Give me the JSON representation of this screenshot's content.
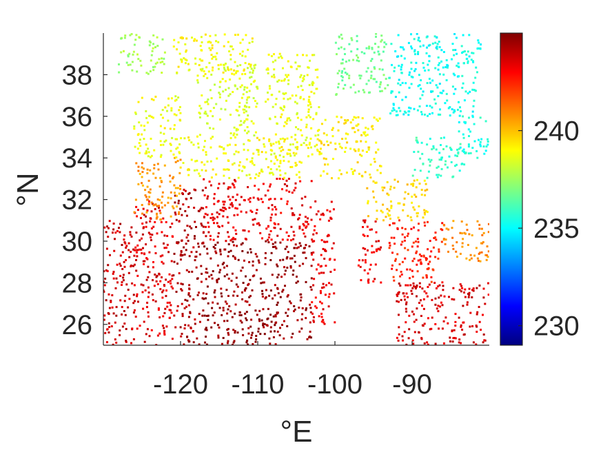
{
  "chart_data": {
    "type": "scatter",
    "title": "",
    "xlabel": "°E",
    "ylabel": "°N",
    "xlim": [
      -130,
      -80
    ],
    "ylim": [
      25,
      40
    ],
    "x_ticks": [
      -120,
      -110,
      -100,
      -90
    ],
    "x_tick_labels": [
      "-120",
      "-110",
      "-100",
      "-90"
    ],
    "y_ticks": [
      26,
      28,
      30,
      32,
      34,
      36,
      38
    ],
    "y_tick_labels": [
      "26",
      "28",
      "30",
      "32",
      "34",
      "36",
      "38"
    ],
    "grid": false,
    "colormap": "jet",
    "colorbar": {
      "range": [
        229,
        245
      ],
      "ticks": [
        230,
        235,
        240
      ],
      "tick_labels": [
        "230",
        "235",
        "240"
      ]
    },
    "regions": [
      {
        "lon": [
          -130,
          -126
        ],
        "lat": [
          25,
          31
        ],
        "value": 243.8
      },
      {
        "lon": [
          -126,
          -121
        ],
        "lat": [
          25,
          32
        ],
        "value": 243.5
      },
      {
        "lon": [
          -121,
          -117
        ],
        "lat": [
          25,
          32.5
        ],
        "value": 244.2
      },
      {
        "lon": [
          -117,
          -103
        ],
        "lat": [
          25,
          30
        ],
        "value": 244.6
      },
      {
        "lon": [
          -117,
          -103
        ],
        "lat": [
          30,
          33
        ],
        "value": 243.3
      },
      {
        "lon": [
          -103,
          -100
        ],
        "lat": [
          26,
          32
        ],
        "value": 243.3
      },
      {
        "lon": [
          -97,
          -94
        ],
        "lat": [
          28,
          31
        ],
        "value": 243.2
      },
      {
        "lon": [
          -92,
          -80
        ],
        "lat": [
          25,
          28
        ],
        "value": 243.6
      },
      {
        "lon": [
          -93,
          -86
        ],
        "lat": [
          28,
          31
        ],
        "value": 242.5
      },
      {
        "lon": [
          -86,
          -80
        ],
        "lat": [
          29,
          31
        ],
        "value": 240.8
      },
      {
        "lon": [
          -96,
          -88
        ],
        "lat": [
          31,
          33
        ],
        "value": 239.6
      },
      {
        "lon": [
          -90,
          -83
        ],
        "lat": [
          33,
          35
        ],
        "value": 235.8
      },
      {
        "lon": [
          -84,
          -80
        ],
        "lat": [
          34,
          36
        ],
        "value": 235.4
      },
      {
        "lon": [
          -126,
          -120
        ],
        "lat": [
          31,
          34
        ],
        "value": 240.6
      },
      {
        "lon": [
          -120,
          -104
        ],
        "lat": [
          33,
          35
        ],
        "value": 239.0
      },
      {
        "lon": [
          -126,
          -120
        ],
        "lat": [
          34,
          37
        ],
        "value": 238.8
      },
      {
        "lon": [
          -118,
          -110
        ],
        "lat": [
          35,
          38.5
        ],
        "value": 238.5
      },
      {
        "lon": [
          -128,
          -122
        ],
        "lat": [
          38,
          40
        ],
        "value": 237.6
      },
      {
        "lon": [
          -121,
          -110
        ],
        "lat": [
          38,
          40
        ],
        "value": 238.9
      },
      {
        "lon": [
          -109,
          -102
        ],
        "lat": [
          34,
          39
        ],
        "value": 238.7
      },
      {
        "lon": [
          -100,
          -93
        ],
        "lat": [
          37,
          40
        ],
        "value": 236.8
      },
      {
        "lon": [
          -102,
          -94
        ],
        "lat": [
          33,
          36
        ],
        "value": 239.3
      },
      {
        "lon": [
          -93,
          -81
        ],
        "lat": [
          36,
          40
        ],
        "value": 235.2
      }
    ]
  }
}
